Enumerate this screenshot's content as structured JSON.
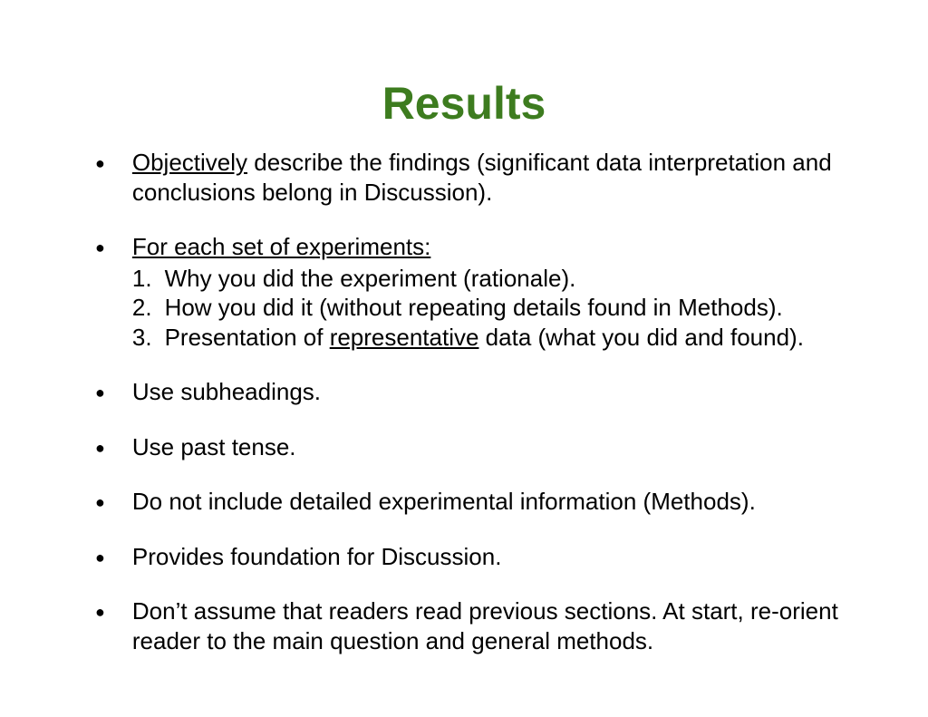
{
  "title": "Results",
  "bullets": [
    {
      "prefix_underlined": "Objectively",
      "rest": " describe the findings (significant data interpretation and conclusions belong in Discussion)."
    },
    {
      "lead_underlined": "For each set of experiments:",
      "sub": [
        {
          "num": "1.",
          "text": "Why you did the experiment (rationale)."
        },
        {
          "num": "2.",
          "text": "How you did it (without repeating details found in Methods)."
        },
        {
          "num": "3.",
          "before": "Presentation of ",
          "underlined": "representative",
          "after": " data (what you did and found)."
        }
      ]
    },
    {
      "text": "Use subheadings."
    },
    {
      "text": "Use past tense."
    },
    {
      "text": "Do not include detailed experimental information (Methods)."
    },
    {
      "text": "Provides foundation for Discussion."
    },
    {
      "text": "Don’t assume that readers read previous sections.  At start, re-orient reader to the main question and general methods."
    }
  ]
}
